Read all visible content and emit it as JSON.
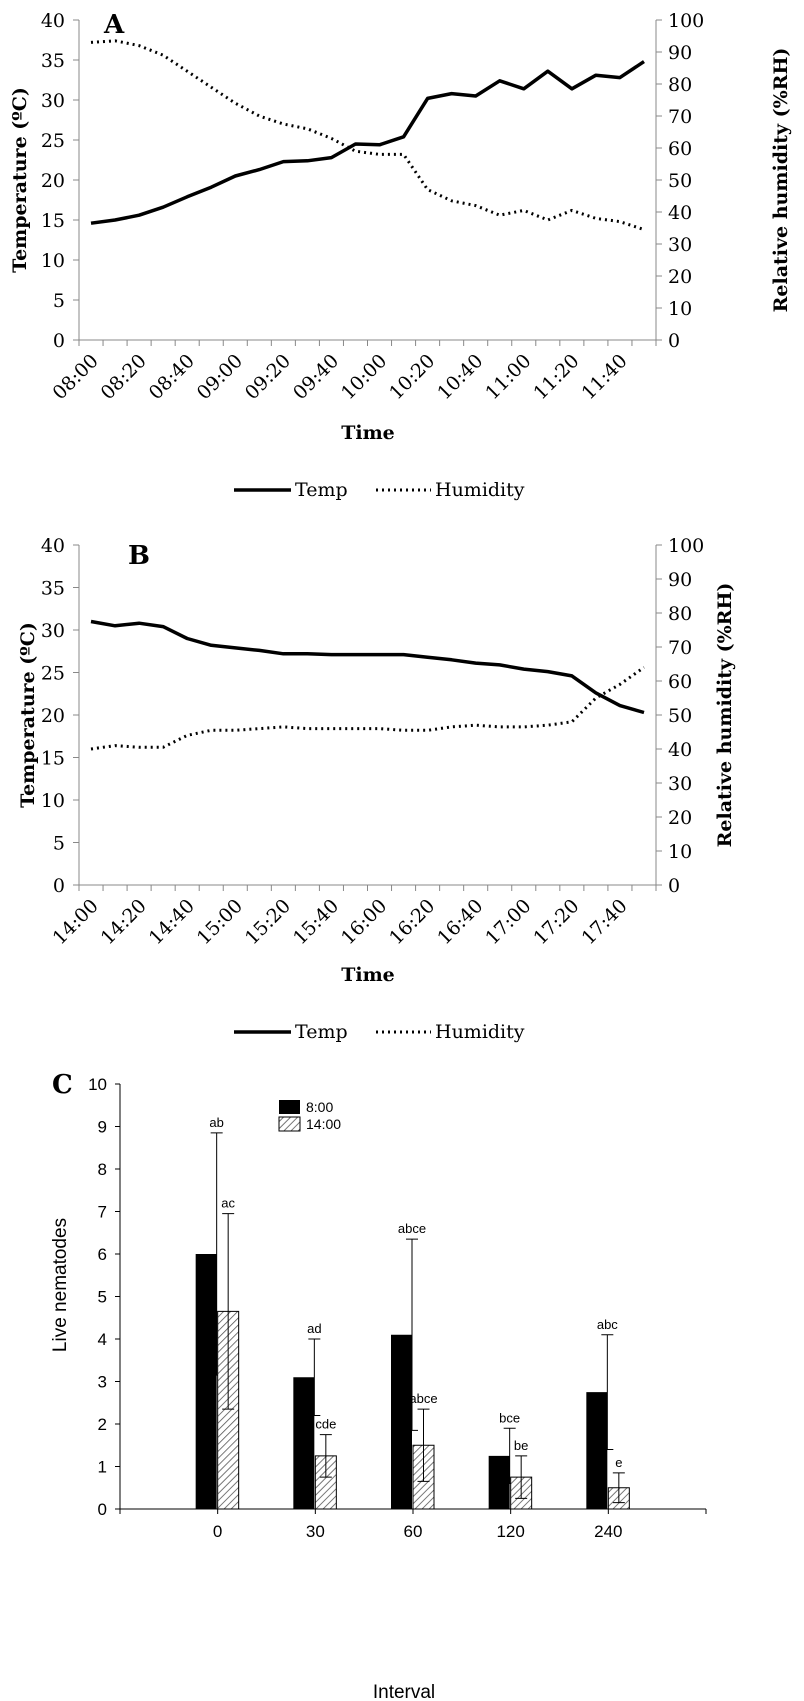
{
  "chart_data": [
    {
      "type": "line",
      "panel_label": "A",
      "xlabel": "Time",
      "ylabel_left": "Temperature (ºC)",
      "ylabel_right": "Relative humidity (%RH)",
      "ylim_left": [
        0,
        40
      ],
      "ylim_right": [
        0,
        100
      ],
      "yticks_left": [
        "0",
        "5",
        "10",
        "15",
        "20",
        "25",
        "30",
        "35",
        "40"
      ],
      "yticks_right": [
        "0",
        "10",
        "20",
        "30",
        "40",
        "50",
        "60",
        "70",
        "80",
        "90",
        "100"
      ],
      "x": [
        "08:00",
        "08:10",
        "08:20",
        "08:30",
        "08:40",
        "08:50",
        "09:00",
        "09:10",
        "09:20",
        "09:30",
        "09:40",
        "09:50",
        "10:00",
        "10:10",
        "10:20",
        "10:30",
        "10:40",
        "10:50",
        "11:00",
        "11:10",
        "11:20",
        "11:30",
        "11:40",
        "11:50"
      ],
      "xtick_labels": [
        "08:00",
        "08:20",
        "08:40",
        "09:00",
        "09:20",
        "09:40",
        "10:00",
        "10:20",
        "10:40",
        "11:00",
        "11:20",
        "11:40"
      ],
      "legend_placement": "bottom",
      "series": [
        {
          "name": "Temp",
          "axis": "left",
          "style": "solid",
          "values": [
            14.6,
            15.0,
            15.6,
            16.6,
            17.9,
            19.1,
            20.5,
            21.3,
            22.3,
            22.4,
            22.8,
            24.5,
            24.4,
            25.4,
            30.2,
            30.8,
            30.5,
            32.4,
            31.4,
            33.6,
            31.4,
            33.1,
            32.8,
            34.8
          ]
        },
        {
          "name": "Humidity",
          "axis": "right",
          "style": "dotted",
          "values": [
            93,
            93.5,
            92,
            89,
            84,
            79,
            74,
            70,
            67.5,
            66,
            63,
            59,
            58,
            58,
            47,
            43.5,
            42,
            39,
            40.5,
            37.5,
            40.5,
            38,
            37,
            34.5
          ]
        }
      ]
    },
    {
      "type": "line",
      "panel_label": "B",
      "xlabel": "Time",
      "ylabel_left": "Temperature (ºC)",
      "ylabel_right": "Relative humidity (%RH)",
      "ylim_left": [
        0,
        40
      ],
      "ylim_right": [
        0,
        100
      ],
      "yticks_left": [
        "0",
        "5",
        "10",
        "15",
        "20",
        "25",
        "30",
        "35",
        "40"
      ],
      "yticks_right": [
        "0",
        "10",
        "20",
        "30",
        "40",
        "50",
        "60",
        "70",
        "80",
        "90",
        "100"
      ],
      "x": [
        "14:00",
        "14:10",
        "14:20",
        "14:30",
        "14:40",
        "14:50",
        "15:00",
        "15:10",
        "15:20",
        "15:30",
        "15:40",
        "15:50",
        "16:00",
        "16:10",
        "16:20",
        "16:30",
        "16:40",
        "16:50",
        "17:00",
        "17:10",
        "17:20",
        "17:30",
        "17:40",
        "17:50"
      ],
      "xtick_labels": [
        "14:00",
        "14:20",
        "14:40",
        "15:00",
        "15:20",
        "15:40",
        "16:00",
        "16:20",
        "16:40",
        "17:00",
        "17:20",
        "17:40"
      ],
      "legend_placement": "bottom",
      "series": [
        {
          "name": "Temp",
          "axis": "left",
          "style": "solid",
          "values": [
            31.0,
            30.5,
            30.8,
            30.4,
            29.0,
            28.2,
            27.9,
            27.6,
            27.2,
            27.2,
            27.1,
            27.1,
            27.1,
            27.1,
            26.8,
            26.5,
            26.1,
            25.9,
            25.4,
            25.1,
            24.6,
            22.6,
            21.1,
            20.3
          ]
        },
        {
          "name": "Humidity",
          "axis": "right",
          "style": "dotted",
          "values": [
            40,
            41,
            40.5,
            40.5,
            44,
            45.5,
            45.5,
            46,
            46.5,
            46,
            46,
            46,
            46,
            45.5,
            45.5,
            46.5,
            47,
            46.5,
            46.5,
            47,
            48,
            55,
            59,
            64
          ]
        }
      ]
    },
    {
      "type": "bar",
      "panel_label": "C",
      "xlabel": "Interval",
      "ylabel": "Live nematodes",
      "ylim": [
        0,
        10
      ],
      "yticks": [
        "0",
        "1",
        "2",
        "3",
        "4",
        "5",
        "6",
        "7",
        "8",
        "9",
        "10"
      ],
      "categories": [
        "0",
        "30",
        "60",
        "120",
        "240"
      ],
      "legend_placement": "upper-center",
      "series": [
        {
          "name": "8:00",
          "fill": "#000000",
          "values": [
            6.0,
            3.1,
            4.1,
            1.25,
            2.75
          ],
          "error": [
            2.85,
            0.9,
            2.25,
            0.65,
            1.35
          ],
          "letters": [
            "ab",
            "ad",
            "abce",
            "bce",
            "abc"
          ]
        },
        {
          "name": "14:00",
          "fill": "hatched",
          "values": [
            4.65,
            1.25,
            1.5,
            0.75,
            0.5
          ],
          "error": [
            2.3,
            0.5,
            0.85,
            0.5,
            0.35
          ],
          "letters": [
            "ac",
            "cde",
            "abce",
            "be",
            "e"
          ]
        }
      ]
    }
  ]
}
